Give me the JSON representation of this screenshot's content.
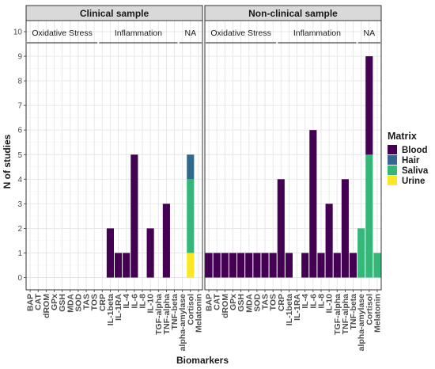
{
  "chart_data": {
    "type": "bar",
    "stacked": true,
    "xlabel": "Biomarkers",
    "ylabel": "N of studies",
    "ylim": [
      0,
      10
    ],
    "y_ticks": [
      0,
      1,
      2,
      3,
      4,
      5,
      6,
      7,
      8,
      9,
      10
    ],
    "grid": true,
    "legend": {
      "title": "Matrix",
      "position": "right",
      "entries": [
        {
          "name": "Blood",
          "color": "#440154"
        },
        {
          "name": "Hair",
          "color": "#31688E"
        },
        {
          "name": "Saliva",
          "color": "#35B779"
        },
        {
          "name": "Urine",
          "color": "#FDE725"
        }
      ]
    },
    "categories": [
      "BAP",
      "CAT",
      "dROM",
      "GPx",
      "GSH",
      "MDA",
      "SOD",
      "TAS",
      "TOS",
      "CRP",
      "IL-1beta",
      "IL-1RA",
      "IL-4",
      "IL-6",
      "IL-8",
      "IL-10",
      "TGF-alpha",
      "TNF-alpha",
      "TNF-beta",
      "alpha-amylase",
      "Cortisol",
      "Melatonin"
    ],
    "group_labels": [
      {
        "label": "Oxidative Stress",
        "first": 0,
        "last": 8
      },
      {
        "label": "Inflammation",
        "first": 9,
        "last": 18
      },
      {
        "label": "NA",
        "first": 19,
        "last": 21
      }
    ],
    "panels": [
      {
        "title": "Clinical sample",
        "series": [
          {
            "name": "Blood",
            "values": [
              0,
              0,
              0,
              0,
              0,
              0,
              0,
              0,
              0,
              0,
              2,
              1,
              1,
              5,
              0,
              2,
              0,
              3,
              0,
              0,
              0,
              0
            ]
          },
          {
            "name": "Hair",
            "values": [
              0,
              0,
              0,
              0,
              0,
              0,
              0,
              0,
              0,
              0,
              0,
              0,
              0,
              0,
              0,
              0,
              0,
              0,
              0,
              0,
              1,
              0
            ]
          },
          {
            "name": "Saliva",
            "values": [
              0,
              0,
              0,
              0,
              0,
              0,
              0,
              0,
              0,
              0,
              0,
              0,
              0,
              0,
              0,
              0,
              0,
              0,
              0,
              0,
              3,
              0
            ]
          },
          {
            "name": "Urine",
            "values": [
              0,
              0,
              0,
              0,
              0,
              0,
              0,
              0,
              0,
              0,
              0,
              0,
              0,
              0,
              0,
              0,
              0,
              0,
              0,
              0,
              1,
              0
            ]
          }
        ]
      },
      {
        "title": "Non-clinical sample",
        "series": [
          {
            "name": "Blood",
            "values": [
              1,
              1,
              1,
              1,
              1,
              1,
              1,
              1,
              1,
              4,
              1,
              0,
              1,
              6,
              1,
              3,
              1,
              4,
              1,
              0,
              4,
              0
            ]
          },
          {
            "name": "Hair",
            "values": [
              0,
              0,
              0,
              0,
              0,
              0,
              0,
              0,
              0,
              0,
              0,
              0,
              0,
              0,
              0,
              0,
              0,
              0,
              0,
              0,
              0,
              0
            ]
          },
          {
            "name": "Saliva",
            "values": [
              0,
              0,
              0,
              0,
              0,
              0,
              0,
              0,
              0,
              0,
              0,
              0,
              0,
              0,
              0,
              0,
              0,
              0,
              0,
              2,
              5,
              1
            ]
          },
          {
            "name": "Urine",
            "values": [
              0,
              0,
              0,
              0,
              0,
              0,
              0,
              0,
              0,
              0,
              0,
              0,
              0,
              0,
              0,
              0,
              0,
              0,
              0,
              0,
              0,
              0
            ]
          }
        ]
      }
    ]
  }
}
